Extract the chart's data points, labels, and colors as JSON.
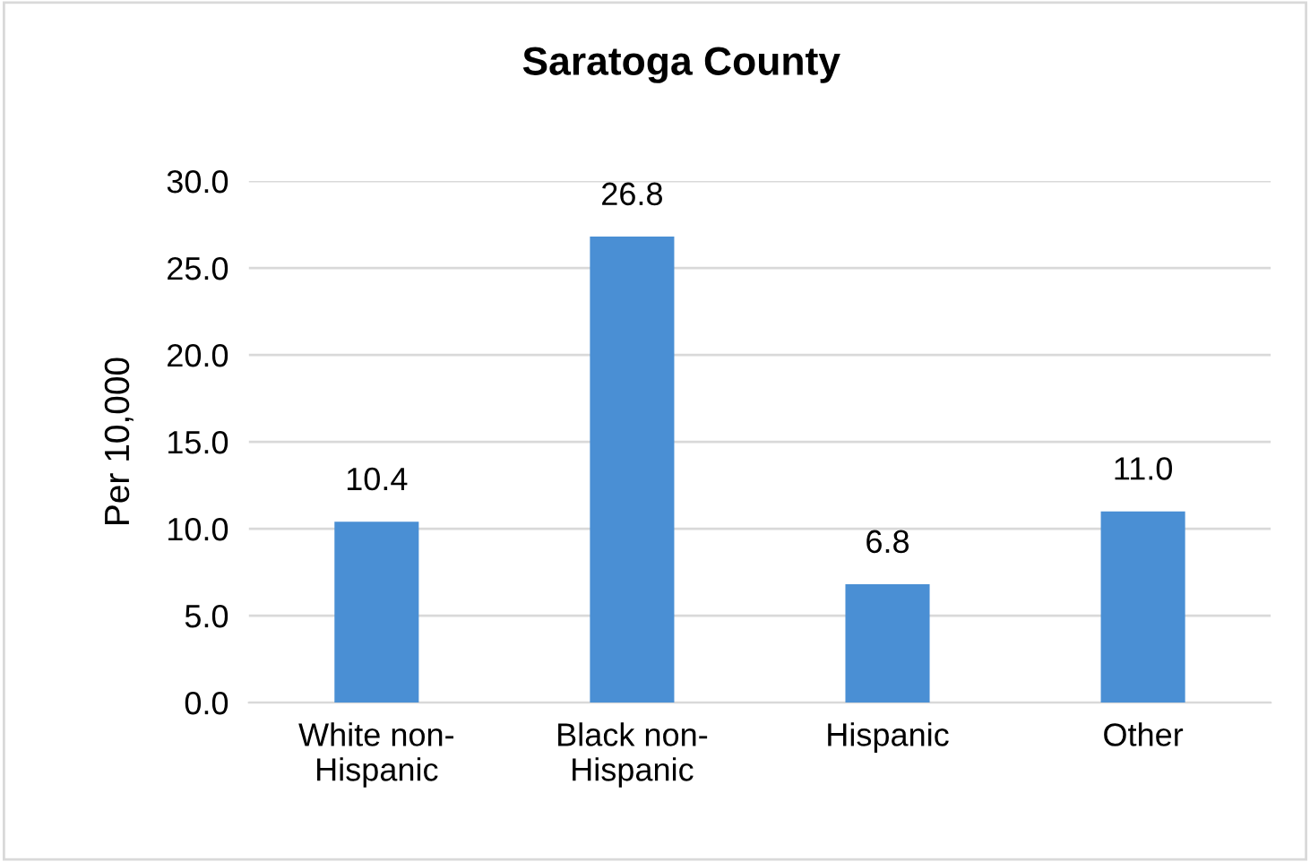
{
  "chart_data": {
    "type": "bar",
    "title": "Saratoga County",
    "ylabel": "Per 10,000",
    "categories": [
      "White non-Hispanic",
      "Black non-Hispanic",
      "Hispanic",
      "Other"
    ],
    "values": [
      10.4,
      26.8,
      6.8,
      11
    ],
    "value_labels": [
      "10.4",
      "26.8",
      "6.8",
      "11.0"
    ],
    "color": "#4a8fd4",
    "ylim": [
      0,
      30
    ],
    "yticks": [
      {
        "value": 0,
        "label": "0.0"
      },
      {
        "value": 5,
        "label": "5.0"
      },
      {
        "value": 10,
        "label": "10.0"
      },
      {
        "value": 15,
        "label": "15.0"
      },
      {
        "value": 20,
        "label": "20.0"
      },
      {
        "value": 25,
        "label": "25.0"
      },
      {
        "value": 30,
        "label": "30.0"
      }
    ],
    "grid": "y"
  }
}
